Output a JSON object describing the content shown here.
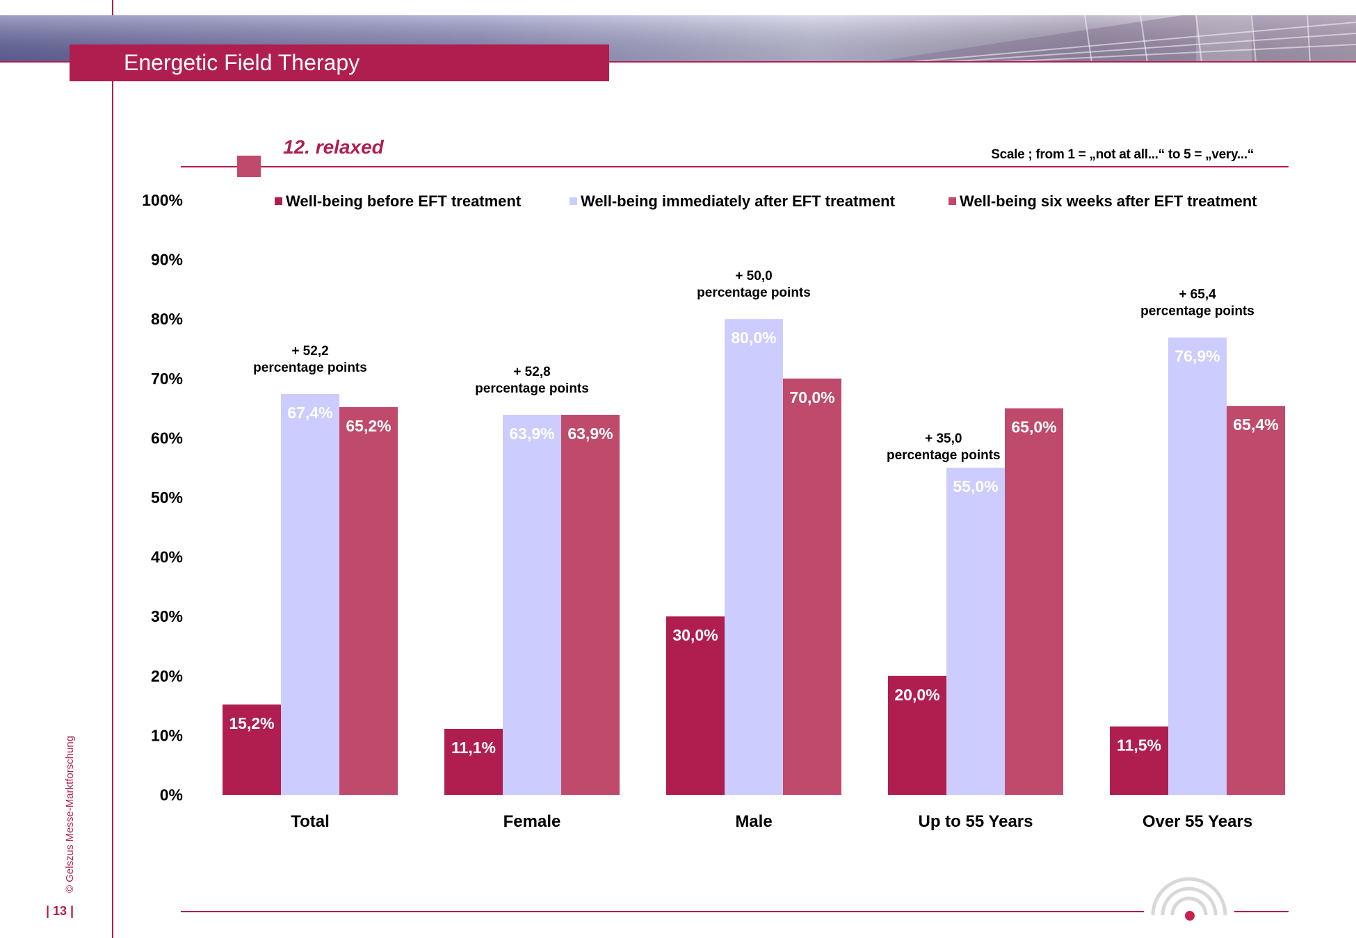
{
  "header": {
    "title": "Energetic Field Therapy",
    "subtitle": "12. relaxed",
    "scale_note": "Scale ; from 1 = „not at all...“  to 5 = „very...“"
  },
  "footer": {
    "copyright": "© Gelszus Messe-Marktforschung",
    "page_number": "| 13 |"
  },
  "colors": {
    "accent": "#b01e50",
    "series_before": "#b01e50",
    "series_immediately": "#ccccff",
    "series_six_weeks": "#c04a6b"
  },
  "chart_data": {
    "type": "bar",
    "title": "12. relaxed",
    "xlabel": "",
    "ylabel": "",
    "ylim": [
      0,
      100
    ],
    "yticks": [
      "0%",
      "10%",
      "20%",
      "30%",
      "40%",
      "50%",
      "60%",
      "70%",
      "80%",
      "90%",
      "100%"
    ],
    "categories": [
      "Total",
      "Female",
      "Male",
      "Up to 55 Years",
      "Over 55 Years"
    ],
    "series": [
      {
        "name": "Well-being before EFT treatment",
        "color": "#b01e50",
        "values": [
          15.2,
          11.1,
          30.0,
          20.0,
          11.5
        ],
        "labels": [
          "15,2%",
          "11,1%",
          "30,0%",
          "20,0%",
          "11,5%"
        ]
      },
      {
        "name": "Well-being immediately after EFT treatment",
        "color": "#ccccff",
        "values": [
          67.4,
          63.9,
          80.0,
          55.0,
          76.9
        ],
        "labels": [
          "67,4%",
          "63,9%",
          "80,0%",
          "55,0%",
          "76,9%"
        ]
      },
      {
        "name": "Well-being six weeks after EFT treatment",
        "color": "#c04a6b",
        "values": [
          65.2,
          63.9,
          70.0,
          65.0,
          65.4
        ],
        "labels": [
          "65,2%",
          "63,9%",
          "70,0%",
          "65,0%",
          "65,4%"
        ]
      }
    ],
    "annotations": [
      {
        "category": "Total",
        "value": 52.2,
        "line1": "+ 52,2",
        "line2": "percentage points"
      },
      {
        "category": "Female",
        "value": 52.8,
        "line1": "+ 52,8",
        "line2": "percentage points"
      },
      {
        "category": "Male",
        "value": 50.0,
        "line1": "+ 50,0",
        "line2": "percentage points"
      },
      {
        "category": "Up to 55 Years",
        "value": 35.0,
        "line1": "+ 35,0",
        "line2": "percentage points"
      },
      {
        "category": "Over 55 Years",
        "value": 65.4,
        "line1": "+ 65,4",
        "line2": "percentage points"
      }
    ],
    "grid": false,
    "legend": "top"
  }
}
